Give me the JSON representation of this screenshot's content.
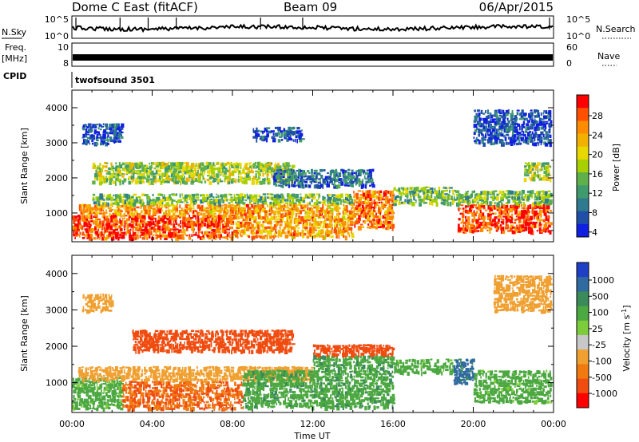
{
  "header": {
    "station": "Dome C East (fitACF)",
    "beam": "Beam 09",
    "date": "06/Apr/2015"
  },
  "top_panels": {
    "nsky": {
      "label": "N.Sky",
      "ticks": [
        "10^5",
        "10^0"
      ]
    },
    "nsearch": {
      "label": "N.Search",
      "ticks": [
        "10^5",
        "10^0"
      ]
    },
    "freq": {
      "label_line1": "Freq.",
      "label_line2": "[MHz]",
      "ticks": [
        "10",
        "8"
      ]
    },
    "nave": {
      "label": "Nave",
      "ticks": [
        "60",
        "0"
      ]
    },
    "cpid": {
      "label": "CPID",
      "program": "twofsound 3501"
    }
  },
  "chart_data": [
    {
      "type": "heatmap",
      "name": "power",
      "xlabel": "Time UT",
      "ylabel": "Slant Range [km]",
      "x_ticks": [
        "00:00",
        "04:00",
        "08:00",
        "12:00",
        "16:00",
        "20:00",
        "00:00"
      ],
      "x_range_hours": [
        0,
        24
      ],
      "y_ticks": [
        1000,
        2000,
        3000,
        4000
      ],
      "y_range_km": [
        180,
        4500
      ],
      "colorbar": {
        "label": "Power [dB]",
        "ticks": [
          "28",
          "24",
          "20",
          "16",
          "12",
          "8",
          "4"
        ],
        "colors": [
          "#ff0000",
          "#ff5000",
          "#ff8c00",
          "#f2b000",
          "#e6d800",
          "#a8d000",
          "#5fb04a",
          "#3f9a6e",
          "#2f7a8e",
          "#204fa8",
          "#1020e0"
        ]
      },
      "regions": [
        {
          "t0": 0.0,
          "t1": 8.0,
          "r0": 300,
          "r1": 1000,
          "level": 26
        },
        {
          "t0": 0.3,
          "t1": 8.5,
          "r0": 1000,
          "r1": 1300,
          "level": 22
        },
        {
          "t0": 1.0,
          "t1": 14.0,
          "r0": 1300,
          "r1": 1600,
          "level": 14
        },
        {
          "t0": 8.0,
          "t1": 14.0,
          "r0": 350,
          "r1": 1300,
          "level": 22
        },
        {
          "t0": 14.0,
          "t1": 16.0,
          "r0": 600,
          "r1": 1700,
          "level": 24
        },
        {
          "t0": 16.0,
          "t1": 19.0,
          "r0": 1300,
          "r1": 1800,
          "level": 14
        },
        {
          "t0": 19.2,
          "t1": 24.0,
          "r0": 500,
          "r1": 1300,
          "level": 26
        },
        {
          "t0": 19.0,
          "t1": 24.0,
          "r0": 1300,
          "r1": 1700,
          "level": 14
        },
        {
          "t0": 1.0,
          "t1": 11.0,
          "r0": 1900,
          "r1": 2500,
          "level": 16
        },
        {
          "t0": 10.0,
          "t1": 15.0,
          "r0": 1800,
          "r1": 2300,
          "level": 8
        },
        {
          "t0": 0.5,
          "t1": 2.5,
          "r0": 3000,
          "r1": 3600,
          "level": 6
        },
        {
          "t0": 9.0,
          "t1": 11.5,
          "r0": 3100,
          "r1": 3500,
          "level": 6
        },
        {
          "t0": 20.0,
          "t1": 24.0,
          "r0": 3000,
          "r1": 4000,
          "level": 6
        },
        {
          "t0": 22.5,
          "t1": 24.0,
          "r0": 2000,
          "r1": 2500,
          "level": 16
        }
      ]
    },
    {
      "type": "heatmap",
      "name": "velocity",
      "xlabel": "Time UT",
      "ylabel": "Slant Range [km]",
      "x_ticks": [
        "00:00",
        "04:00",
        "08:00",
        "12:00",
        "16:00",
        "20:00",
        "00:00"
      ],
      "x_range_hours": [
        0,
        24
      ],
      "y_ticks": [
        1000,
        2000,
        3000,
        4000
      ],
      "y_range_km": [
        180,
        4500
      ],
      "colorbar": {
        "label_main": "Velocity  [m s",
        "label_sup": "-1",
        "label_end": "]",
        "ticks": [
          "1000",
          "500",
          "100",
          "25",
          "-25",
          "-100",
          "-500",
          "-1000"
        ],
        "colors": [
          "#1f3fc4",
          "#2f6aa0",
          "#3a8a5a",
          "#4ca840",
          "#7ccc3c",
          "#c8c8c8",
          "#f0a030",
          "#f07a10",
          "#f04c10",
          "#ff0000"
        ]
      },
      "regions": [
        {
          "t0": 0.0,
          "t1": 2.5,
          "r0": 300,
          "r1": 1200,
          "level": 150
        },
        {
          "t0": 2.5,
          "t1": 8.5,
          "r0": 300,
          "r1": 1100,
          "level": -100
        },
        {
          "t0": 0.3,
          "t1": 12.0,
          "r0": 1100,
          "r1": 1500,
          "level": 0
        },
        {
          "t0": 8.5,
          "t1": 16.0,
          "r0": 350,
          "r1": 1400,
          "level": 200
        },
        {
          "t0": 12.0,
          "t1": 16.0,
          "r0": 1400,
          "r1": 1800,
          "level": 200
        },
        {
          "t0": 16.0,
          "t1": 19.0,
          "r0": 1300,
          "r1": 1700,
          "level": 150
        },
        {
          "t0": 19.0,
          "t1": 20.0,
          "r0": 1000,
          "r1": 1700,
          "level": 700
        },
        {
          "t0": 20.0,
          "t1": 24.0,
          "r0": 500,
          "r1": 1400,
          "level": 150
        },
        {
          "t0": 3.0,
          "t1": 11.0,
          "r0": 1900,
          "r1": 2500,
          "level": -300
        },
        {
          "t0": 0.5,
          "t1": 2.0,
          "r0": 3000,
          "r1": 3500,
          "level": 0
        },
        {
          "t0": 21.0,
          "t1": 24.0,
          "r0": 3000,
          "r1": 4000,
          "level": 0
        },
        {
          "t0": 12.0,
          "t1": 16.0,
          "r0": 1800,
          "r1": 2100,
          "level": -300
        }
      ]
    }
  ]
}
